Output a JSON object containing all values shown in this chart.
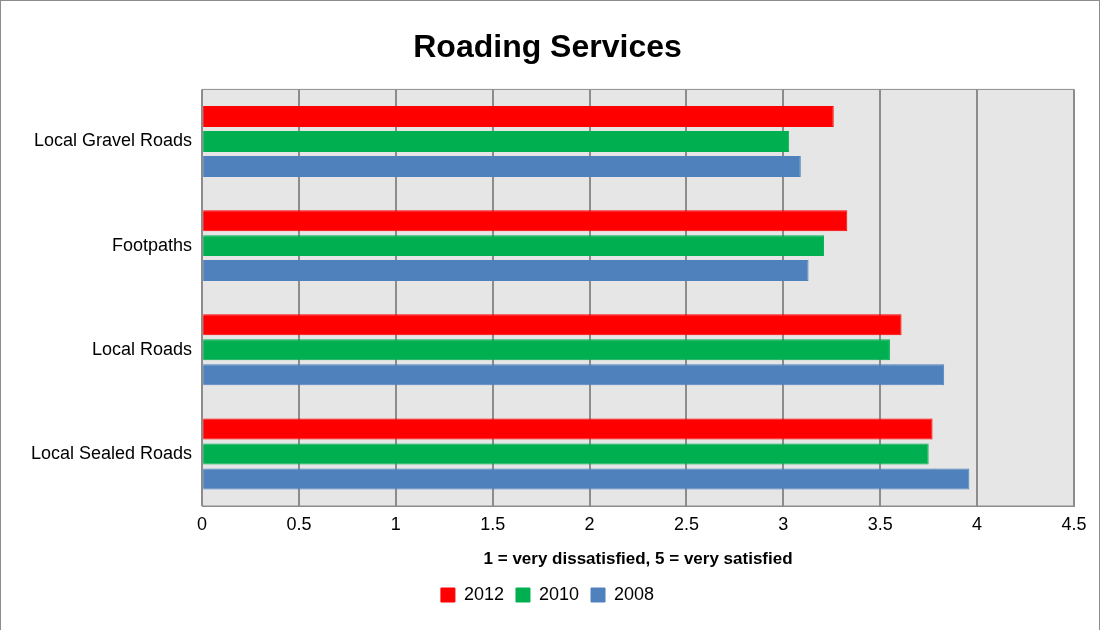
{
  "chart_data": {
    "type": "bar",
    "orientation": "horizontal",
    "title": "Roading Services",
    "xlabel": "1 = very dissatisfied, 5 = very satisfied",
    "categories": [
      "Local Gravel Roads",
      "Footpaths",
      "Local Roads",
      "Local Sealed Roads"
    ],
    "series": [
      {
        "name": "2012",
        "color": "#ff0000",
        "values": [
          3.26,
          3.33,
          3.61,
          3.77
        ]
      },
      {
        "name": "2010",
        "color": "#00b050",
        "values": [
          3.03,
          3.21,
          3.55,
          3.75
        ]
      },
      {
        "name": "2008",
        "color": "#4f81bd",
        "values": [
          3.09,
          3.13,
          3.83,
          3.96
        ]
      }
    ],
    "xlim": [
      0,
      4.5
    ],
    "xticks": [
      0,
      0.5,
      1,
      1.5,
      2,
      2.5,
      3,
      3.5,
      4,
      4.5
    ],
    "grid": "x",
    "legend": "bottom"
  }
}
